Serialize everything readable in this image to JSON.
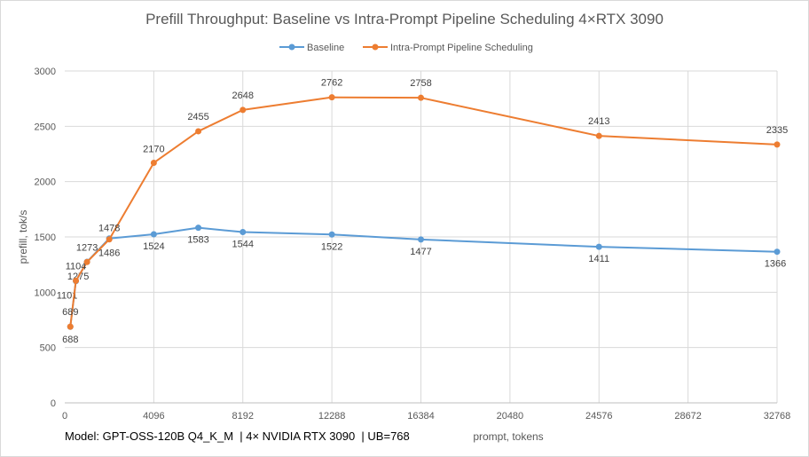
{
  "chart_data": {
    "type": "line",
    "title": "Prefill Throughput: Baseline vs Intra-Prompt Pipeline Scheduling 4×RTX 3090",
    "xlabel": "prompt, tokens",
    "ylabel": "prefill, tok/s",
    "xlim": [
      0,
      32768
    ],
    "ylim": [
      0,
      3000
    ],
    "x_ticks": [
      0,
      4096,
      8192,
      12288,
      16384,
      20480,
      24576,
      28672,
      32768
    ],
    "y_ticks": [
      0,
      500,
      1000,
      1500,
      2000,
      2500,
      3000
    ],
    "grid": true,
    "legend_position": "top",
    "series": [
      {
        "name": "Baseline",
        "color": "#5B9BD5",
        "x": [
          256,
          512,
          1024,
          2048,
          4096,
          6144,
          8192,
          12288,
          16384,
          24576,
          32768
        ],
        "values": [
          688,
          1101,
          1275,
          1486,
          1524,
          1583,
          1544,
          1522,
          1477,
          1411,
          1366
        ]
      },
      {
        "name": "Intra-Prompt Pipeline Scheduling",
        "color": "#ED7D31",
        "x": [
          256,
          512,
          1024,
          2048,
          4096,
          6144,
          8192,
          12288,
          16384,
          24576,
          32768
        ],
        "values": [
          689,
          1104,
          1273,
          1478,
          2170,
          2455,
          2648,
          2762,
          2758,
          2413,
          2335
        ]
      }
    ]
  },
  "footer": {
    "note": "Model: GPT-OSS-120B Q4_K_M  | 4× NVIDIA RTX 3090  | UB=768"
  }
}
